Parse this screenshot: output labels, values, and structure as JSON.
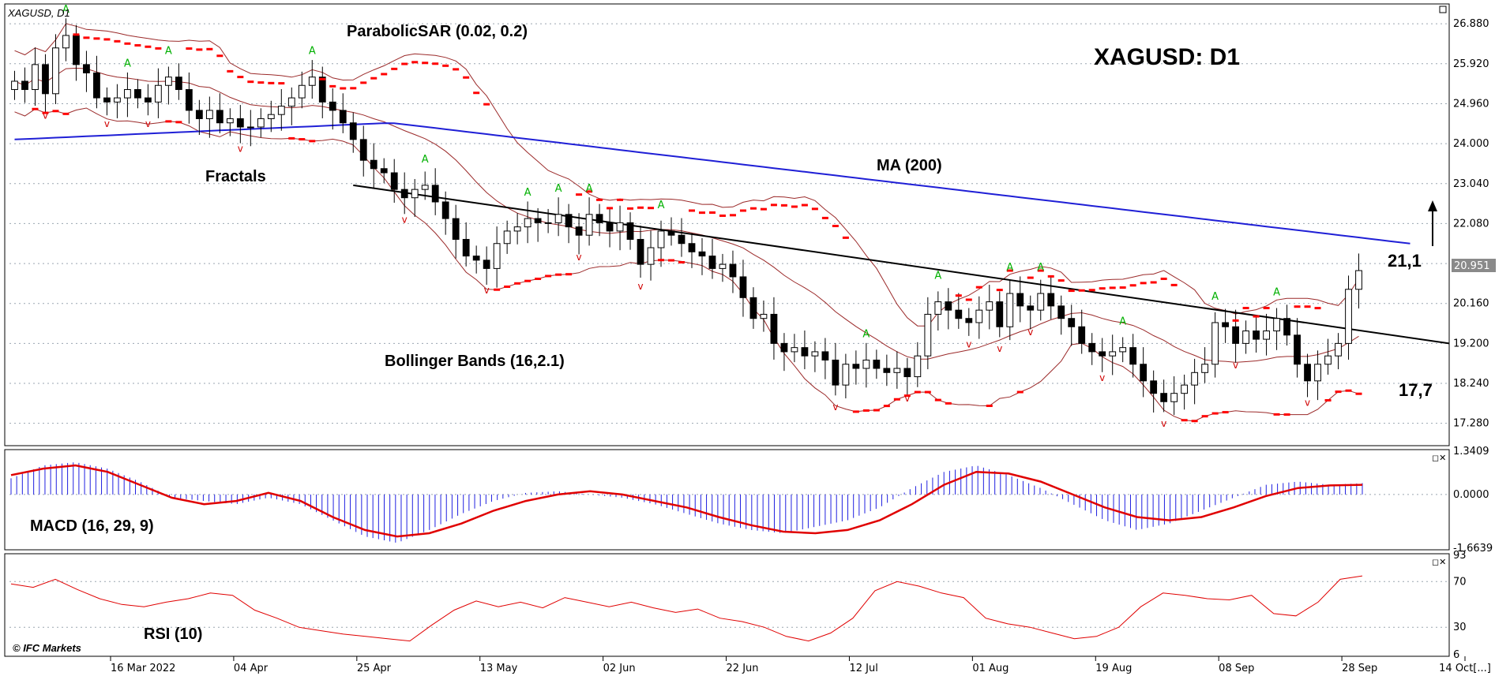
{
  "symbol_label": "XAGUSD, D1",
  "main_title": "XAGUSD: D1",
  "indicator_labels": {
    "psar": "ParabolicSAR (0.02, 0.2)",
    "fractals": "Fractals",
    "ma": "MA (200)",
    "bollinger": "Bollinger Bands (16,2.1)",
    "macd": "MACD (16, 29, 9)",
    "rsi": "RSI (10)"
  },
  "annotations": {
    "target": "21,1",
    "stop": "17,7",
    "current_price": "20.951",
    "copyright": "© IFC Markets",
    "last_tick_label": "14 Oct[...]"
  },
  "colors": {
    "background": "#ffffff",
    "up_candle": "#ffffff",
    "down_candle": "#000000",
    "ma200": "#1f1fd6",
    "bollinger": "#9b2a2a",
    "psar": "#ff0000",
    "fractal_up": "#00b000",
    "fractal_down": "#d00000",
    "macd_signal": "#e00000",
    "macd_hist": "#2020e0",
    "rsi_line": "#e00000",
    "trendline": "#000000",
    "grid": "#9aa5b0"
  },
  "chart_data": [
    {
      "type": "candlestick",
      "title": "XAGUSD: D1",
      "ylim": [
        16.8,
        27.3
      ],
      "y_ticks": [
        "26.880",
        "25.920",
        "24.960",
        "24.000",
        "23.040",
        "22.080",
        "21.120",
        "20.160",
        "19.200",
        "18.240",
        "17.280"
      ],
      "x_ticks": [
        "16 Mar 2022",
        "04 Apr",
        "25 Apr",
        "13 May",
        "02 Jun",
        "22 Jun",
        "12 Jul",
        "01 Aug",
        "19 Aug",
        "08 Sep",
        "28 Sep",
        "14 Oct"
      ],
      "grid": true,
      "closes": [
        25.5,
        25.3,
        25.9,
        25.2,
        26.3,
        26.6,
        25.9,
        25.7,
        25.1,
        25.0,
        25.1,
        25.3,
        25.1,
        25.0,
        25.4,
        25.6,
        25.3,
        24.8,
        24.6,
        24.8,
        24.5,
        24.6,
        24.4,
        24.4,
        24.6,
        24.7,
        24.9,
        25.1,
        25.4,
        25.6,
        25.0,
        24.8,
        24.5,
        24.1,
        23.6,
        23.4,
        23.3,
        22.9,
        22.7,
        22.9,
        23.0,
        22.6,
        22.2,
        21.7,
        21.3,
        21.2,
        21.0,
        21.6,
        21.9,
        22.0,
        22.2,
        22.1,
        22.1,
        22.3,
        22.0,
        21.8,
        22.3,
        22.1,
        21.9,
        22.1,
        21.7,
        21.1,
        21.5,
        21.9,
        21.8,
        21.6,
        21.4,
        21.3,
        21.0,
        21.1,
        20.8,
        20.3,
        19.8,
        19.9,
        19.2,
        19.0,
        19.1,
        18.9,
        19.0,
        18.8,
        18.2,
        18.7,
        18.6,
        18.8,
        18.6,
        18.5,
        18.6,
        18.4,
        18.9,
        19.9,
        20.2,
        20.0,
        19.8,
        19.7,
        20.0,
        20.2,
        19.6,
        20.4,
        20.1,
        20.0,
        20.4,
        20.1,
        19.8,
        19.6,
        19.2,
        19.0,
        18.9,
        19.0,
        19.1,
        18.7,
        18.3,
        18.0,
        17.8,
        18.0,
        18.2,
        18.5,
        18.7,
        19.7,
        19.6,
        19.2,
        19.5,
        19.3,
        19.5,
        19.8,
        19.4,
        18.7,
        18.3,
        18.7,
        18.9,
        19.2,
        20.5,
        20.95
      ],
      "ma200": {
        "from": 24.1,
        "peak": 24.5,
        "to": 21.6
      },
      "trendline": {
        "from": 23.0,
        "to": 19.2
      },
      "levels": [
        21.1,
        17.7
      ]
    },
    {
      "type": "bar",
      "title": "MACD (16, 29, 9)",
      "ylim": [
        -1.6639,
        1.3409
      ],
      "y_ticks": [
        "1.3409",
        "0.0000",
        "-1.6639"
      ],
      "signal": [
        0.6,
        0.8,
        0.9,
        0.7,
        0.3,
        -0.1,
        -0.3,
        -0.2,
        0.05,
        -0.2,
        -0.7,
        -1.1,
        -1.3,
        -1.2,
        -0.9,
        -0.5,
        -0.2,
        0.0,
        0.1,
        0.0,
        -0.2,
        -0.4,
        -0.7,
        -0.95,
        -1.15,
        -1.2,
        -1.1,
        -0.8,
        -0.3,
        0.3,
        0.7,
        0.65,
        0.4,
        0.0,
        -0.4,
        -0.7,
        -0.8,
        -0.7,
        -0.4,
        -0.05,
        0.2,
        0.28,
        0.3
      ],
      "histogram": [
        0.5,
        0.9,
        1.0,
        0.8,
        0.4,
        -0.1,
        -0.2,
        -0.3,
        -0.1,
        -0.3,
        -0.8,
        -1.3,
        -1.5,
        -1.1,
        -0.6,
        -0.2,
        0.05,
        0.1,
        0.0,
        -0.1,
        -0.3,
        -0.6,
        -0.9,
        -1.1,
        -1.2,
        -1.0,
        -0.8,
        -0.4,
        0.2,
        0.7,
        0.9,
        0.6,
        0.2,
        -0.3,
        -0.8,
        -1.1,
        -0.9,
        -0.5,
        -0.1,
        0.3,
        0.4,
        0.3,
        0.35
      ]
    },
    {
      "type": "line",
      "title": "RSI (10)",
      "ylim": [
        6,
        93
      ],
      "y_ticks": [
        "93",
        "70",
        "30",
        "6"
      ],
      "levels": [
        70,
        30
      ],
      "values": [
        68,
        65,
        72,
        63,
        55,
        50,
        48,
        52,
        55,
        60,
        58,
        45,
        38,
        30,
        27,
        24,
        22,
        20,
        18,
        32,
        45,
        53,
        48,
        52,
        47,
        56,
        52,
        48,
        52,
        47,
        43,
        46,
        38,
        35,
        30,
        22,
        18,
        25,
        38,
        62,
        70,
        66,
        60,
        56,
        38,
        33,
        30,
        25,
        20,
        22,
        30,
        48,
        60,
        58,
        55,
        54,
        58,
        42,
        40,
        52,
        72,
        75
      ]
    }
  ]
}
